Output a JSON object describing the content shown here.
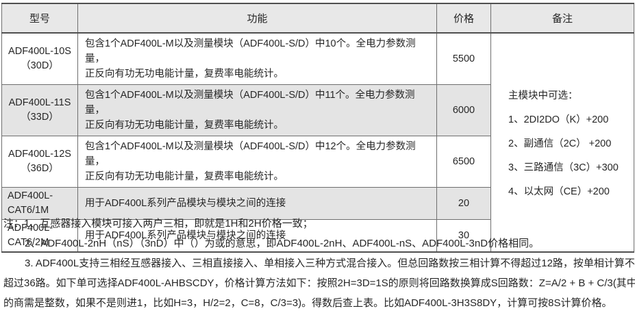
{
  "table": {
    "headers": {
      "model": "型号",
      "function": "功能",
      "price": "价格",
      "remark": "备注"
    },
    "rows": [
      {
        "model": "ADF400L-10S",
        "variant": "（30D）",
        "function": "包含1个ADF400L-M以及测量模块（ADF400L-S/D）中10个。全电力参数测量，\n正反向有功无功电能计量，复费率电能统计。",
        "price": "5500"
      },
      {
        "model": "ADF400L-11S",
        "variant": "（33D）",
        "function": "包含1个ADF400L-M以及测量模块（ADF400L-S/D）中11个。全电力参数测量，\n正反向有功无功电能计量，复费率电能统计。",
        "price": "6000"
      },
      {
        "model": "ADF400L-12S",
        "variant": "（36D）",
        "function": "包含1个ADF400L-M以及测量模块（ADF400L-S/D）中12个。全电力参数测量，\n正反向有功无功电能计量，复费率电能统计。",
        "price": "6500"
      },
      {
        "model": "ADF400L-CAT6/1M",
        "variant": "",
        "function": "用于ADF400L系列产品模块与模块之间的连接",
        "price": "20"
      },
      {
        "model": "ADF400L-CAT6/2M",
        "variant": "",
        "function": "用于ADF400L系列产品模块与模块之间的连接",
        "price": "30"
      }
    ],
    "remark": {
      "title": "主模块中可选：",
      "items": [
        "1、2DI2DO（K）+200",
        "2、副通信（2C） +200",
        "3、三路通信（3C）+300",
        "4、以太网（CE）+200"
      ]
    }
  },
  "notes": {
    "line1": "注：1、互感器接入模块可接入两户三相，即就是1H和2H价格一致；",
    "line2": "2、ADF400L-2nH（nS）（3nD）中（）为或的意思，即ADF400L-2nH、ADF400L-nS、ADF400L-3nD价格相同。",
    "line3": "3. ADF400L支持三相经互感器接入、三相直接接入、单相接入三种方式混合接入。但总回路数按三相计算不得超过12路，按单相计算不得",
    "line4": "超过36路。如下单可选择ADF400L-AHBSCDY，价格计算方法如下：按照2H=3D=1S的原则将回路数换算成S回路数：Z=A/2 + B + C/3(其中除法中",
    "line5": "的商需是整数，如果不是则进1，比如H=3，H/2=2，C=8，C/3=3)。得数后查上表。比如ADF400L-3H3S8DY，计算可按8S计算价格。"
  },
  "colors": {
    "header_bg": "#e8e8e8",
    "shaded_row_bg": "#e4e4e4",
    "border_outer": "#4f4f4f",
    "border_inner": "#6e6e6e",
    "text": "#262626"
  }
}
